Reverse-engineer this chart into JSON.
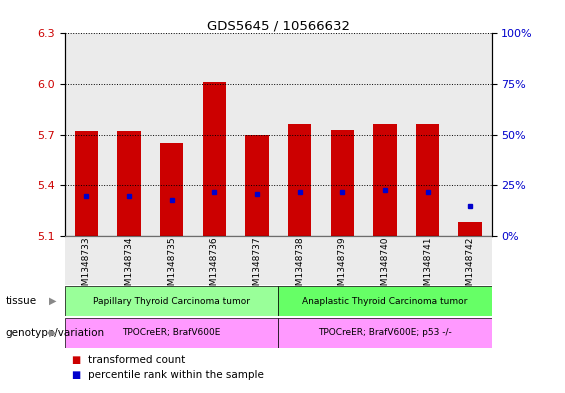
{
  "title": "GDS5645 / 10566632",
  "samples": [
    "GSM1348733",
    "GSM1348734",
    "GSM1348735",
    "GSM1348736",
    "GSM1348737",
    "GSM1348738",
    "GSM1348739",
    "GSM1348740",
    "GSM1348741",
    "GSM1348742"
  ],
  "bar_bottoms": [
    5.1,
    5.1,
    5.1,
    5.1,
    5.1,
    5.1,
    5.1,
    5.1,
    5.1,
    5.1
  ],
  "bar_tops": [
    5.72,
    5.72,
    5.65,
    6.01,
    5.7,
    5.76,
    5.73,
    5.76,
    5.76,
    5.18
  ],
  "percentile_values": [
    5.335,
    5.335,
    5.315,
    5.36,
    5.35,
    5.36,
    5.36,
    5.37,
    5.36,
    5.275
  ],
  "ylim_left": [
    5.1,
    6.3
  ],
  "yticks_left": [
    5.1,
    5.4,
    5.7,
    6.0,
    6.3
  ],
  "yticks_right_labels": [
    "0%",
    "25%",
    "50%",
    "75%",
    "100%"
  ],
  "yticks_right_positions": [
    5.1,
    5.4,
    5.7,
    6.0,
    6.3
  ],
  "bar_color": "#cc0000",
  "percentile_color": "#0000cc",
  "tissue_groups": [
    {
      "label": "Papillary Thyroid Carcinoma tumor",
      "start": 0,
      "end": 5,
      "color": "#99ff99"
    },
    {
      "label": "Anaplastic Thyroid Carcinoma tumor",
      "start": 5,
      "end": 10,
      "color": "#66ff66"
    }
  ],
  "genotype_groups": [
    {
      "label": "TPOCreER; BrafV600E",
      "start": 0,
      "end": 5,
      "color": "#ff99ff"
    },
    {
      "label": "TPOCreER; BrafV600E; p53 -/-",
      "start": 5,
      "end": 10,
      "color": "#ff99ff"
    }
  ],
  "tissue_label": "tissue",
  "genotype_label": "genotype/variation",
  "legend_items": [
    {
      "label": "transformed count",
      "color": "#cc0000"
    },
    {
      "label": "percentile rank within the sample",
      "color": "#0000cc"
    }
  ],
  "bar_width": 0.55,
  "axis_label_color_left": "#cc0000",
  "axis_label_color_right": "#0000cc",
  "col_bg_color": "#d8d8d8"
}
